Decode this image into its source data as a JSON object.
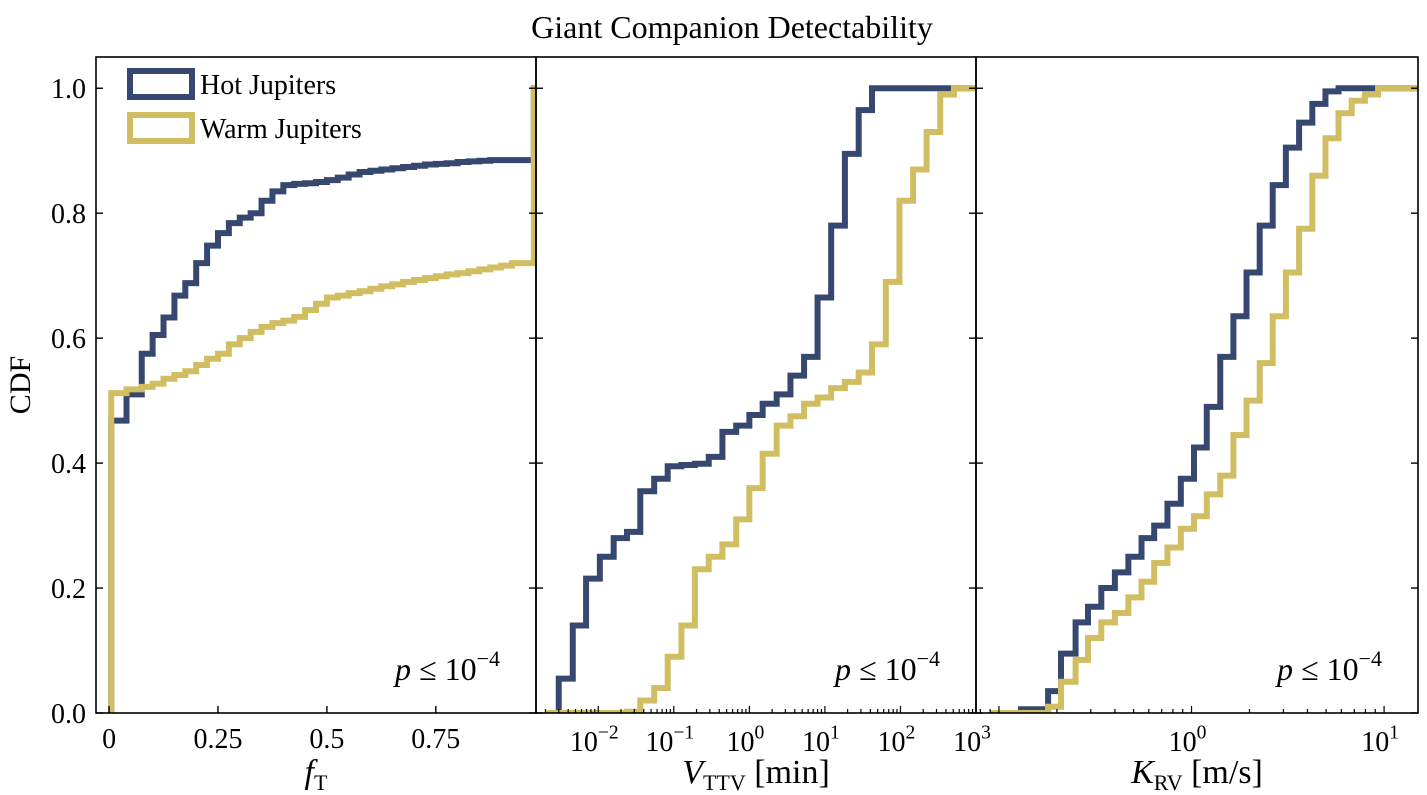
{
  "title": "Giant Companion Detectability",
  "colors": {
    "hot": "#364770",
    "warm": "#d2be62",
    "axis": "#000000"
  },
  "legend": [
    {
      "label": "Hot Jupiters",
      "color": "#364770"
    },
    {
      "label": "Warm Jupiters",
      "color": "#d2be62"
    }
  ],
  "ylabel": "CDF",
  "ytick_labels": [
    "0.0",
    "0.2",
    "0.4",
    "0.6",
    "0.8",
    "1.0"
  ],
  "chart_data": [
    {
      "type": "line",
      "step": true,
      "xlabel_main": "f",
      "xlabel_sub": "T",
      "xscale": "linear",
      "xlim": [
        -0.03,
        0.98
      ],
      "ylim": [
        0,
        1.05
      ],
      "xticks": [
        0,
        0.25,
        0.5,
        0.75
      ],
      "xtick_labels": [
        "0",
        "0.25",
        "0.5",
        "0.75"
      ],
      "annotation": {
        "p": "p",
        "rel": "≤",
        "base": "10",
        "exp": "−4"
      },
      "series": [
        {
          "name": "Hot Jupiters",
          "x": [
            0,
            0.005,
            0.04,
            0.075,
            0.1,
            0.125,
            0.15,
            0.175,
            0.2,
            0.225,
            0.25,
            0.275,
            0.3,
            0.325,
            0.35,
            0.375,
            0.4,
            0.425,
            0.45,
            0.475,
            0.5,
            0.525,
            0.55,
            0.575,
            0.6,
            0.625,
            0.65,
            0.675,
            0.7,
            0.725,
            0.75,
            0.775,
            0.8,
            0.825,
            0.85,
            0.875,
            0.9,
            0.925,
            0.975
          ],
          "y": [
            0,
            0.468,
            0.51,
            0.575,
            0.605,
            0.633,
            0.668,
            0.688,
            0.72,
            0.748,
            0.768,
            0.784,
            0.793,
            0.8,
            0.82,
            0.835,
            0.845,
            0.847,
            0.848,
            0.85,
            0.853,
            0.857,
            0.862,
            0.866,
            0.868,
            0.87,
            0.872,
            0.874,
            0.876,
            0.878,
            0.879,
            0.88,
            0.882,
            0.883,
            0.884,
            0.885,
            0.885,
            0.885,
            1.0
          ]
        },
        {
          "name": "Warm Jupiters",
          "x": [
            0,
            0.005,
            0.04,
            0.075,
            0.1,
            0.125,
            0.15,
            0.175,
            0.2,
            0.225,
            0.25,
            0.275,
            0.3,
            0.325,
            0.35,
            0.375,
            0.4,
            0.425,
            0.45,
            0.475,
            0.5,
            0.525,
            0.55,
            0.575,
            0.6,
            0.625,
            0.65,
            0.675,
            0.7,
            0.725,
            0.75,
            0.775,
            0.8,
            0.825,
            0.85,
            0.875,
            0.9,
            0.925,
            0.975
          ],
          "y": [
            0,
            0.512,
            0.518,
            0.522,
            0.527,
            0.535,
            0.541,
            0.547,
            0.557,
            0.567,
            0.575,
            0.59,
            0.6,
            0.61,
            0.618,
            0.624,
            0.628,
            0.634,
            0.645,
            0.655,
            0.665,
            0.668,
            0.672,
            0.675,
            0.679,
            0.683,
            0.686,
            0.69,
            0.693,
            0.696,
            0.699,
            0.702,
            0.704,
            0.707,
            0.71,
            0.713,
            0.716,
            0.72,
            1.0
          ]
        }
      ]
    },
    {
      "type": "line",
      "step": true,
      "xlabel_main": "V",
      "xlabel_sub": "TTV",
      "xlabel_unit": "[min]",
      "xscale": "log",
      "xlim": [
        0.0015,
        1000
      ],
      "ylim": [
        0,
        1.05
      ],
      "xticks": [
        0.01,
        0.1,
        1,
        10,
        100,
        1000
      ],
      "xtick_labels": [
        {
          "base": "10",
          "exp": "−2"
        },
        {
          "base": "10",
          "exp": "−1"
        },
        {
          "base": "10",
          "exp": "0"
        },
        {
          "base": "10",
          "exp": "1"
        },
        {
          "base": "10",
          "exp": "2"
        },
        {
          "base": "10",
          "exp": "3"
        }
      ],
      "annotation": {
        "p": "p",
        "rel": "≤",
        "base": "10",
        "exp": "−4"
      },
      "series": [
        {
          "name": "Hot Jupiters",
          "x": [
            0.002,
            0.003,
            0.0046,
            0.0069,
            0.0105,
            0.016,
            0.024,
            0.036,
            0.055,
            0.083,
            0.126,
            0.19,
            0.29,
            0.44,
            0.67,
            1.0,
            1.5,
            2.3,
            3.5,
            5.3,
            8.0,
            12.1,
            18.4,
            28,
            42,
            64,
            97,
            147,
            222,
            336,
            510,
            770
          ],
          "y": [
            0.0,
            0.055,
            0.14,
            0.215,
            0.25,
            0.28,
            0.29,
            0.355,
            0.375,
            0.395,
            0.397,
            0.399,
            0.41,
            0.45,
            0.46,
            0.477,
            0.495,
            0.51,
            0.54,
            0.57,
            0.665,
            0.78,
            0.895,
            0.965,
            1.0,
            1.0,
            1.0,
            1.0,
            1.0,
            1.0,
            1.0,
            1.0
          ]
        },
        {
          "name": "Warm Jupiters",
          "x": [
            0.002,
            0.003,
            0.0046,
            0.0069,
            0.0105,
            0.016,
            0.024,
            0.036,
            0.055,
            0.083,
            0.126,
            0.19,
            0.29,
            0.44,
            0.67,
            1.0,
            1.5,
            2.3,
            3.5,
            5.3,
            8.0,
            12.1,
            18.4,
            28,
            42,
            64,
            97,
            147,
            222,
            336,
            510,
            770
          ],
          "y": [
            0.0,
            0.0,
            0.0,
            0.0,
            0.0,
            0.0,
            0.002,
            0.02,
            0.04,
            0.09,
            0.14,
            0.23,
            0.25,
            0.27,
            0.31,
            0.36,
            0.415,
            0.46,
            0.475,
            0.495,
            0.505,
            0.52,
            0.53,
            0.545,
            0.59,
            0.69,
            0.82,
            0.87,
            0.93,
            0.99,
            1.0,
            1.0
          ]
        }
      ]
    },
    {
      "type": "line",
      "step": true,
      "xlabel_main": "K",
      "xlabel_sub": "RV",
      "xlabel_unit": "[m/s]",
      "xscale": "log",
      "xlim": [
        0.076,
        15
      ],
      "ylim": [
        0,
        1.05
      ],
      "xticks": [
        1,
        10
      ],
      "xtick_labels": [
        {
          "base": "10",
          "exp": "0"
        },
        {
          "base": "10",
          "exp": "1"
        }
      ],
      "annotation": {
        "p": "p",
        "rel": "≤",
        "base": "10",
        "exp": "−4"
      },
      "series": [
        {
          "name": "Hot Jupiters",
          "x": [
            0.09,
            0.13,
            0.18,
            0.21,
            0.25,
            0.29,
            0.34,
            0.4,
            0.47,
            0.55,
            0.64,
            0.75,
            0.88,
            1.03,
            1.2,
            1.41,
            1.65,
            1.93,
            2.26,
            2.64,
            3.09,
            3.62,
            4.24,
            4.96,
            5.8,
            6.79,
            7.95,
            9.3,
            10.9,
            12.7
          ],
          "y": [
            0.0,
            0.006,
            0.035,
            0.095,
            0.145,
            0.17,
            0.2,
            0.225,
            0.25,
            0.28,
            0.3,
            0.335,
            0.375,
            0.425,
            0.49,
            0.57,
            0.635,
            0.705,
            0.78,
            0.845,
            0.905,
            0.945,
            0.975,
            0.995,
            1.0,
            1.0,
            1.0,
            1.0,
            1.0,
            1.0
          ]
        },
        {
          "name": "Warm Jupiters",
          "x": [
            0.09,
            0.13,
            0.18,
            0.21,
            0.25,
            0.29,
            0.34,
            0.4,
            0.47,
            0.55,
            0.64,
            0.75,
            0.88,
            1.03,
            1.2,
            1.41,
            1.65,
            1.93,
            2.26,
            2.64,
            3.09,
            3.62,
            4.24,
            4.96,
            5.8,
            6.79,
            7.95,
            9.3,
            10.9,
            12.7
          ],
          "y": [
            0.0,
            0.0,
            0.01,
            0.05,
            0.085,
            0.12,
            0.145,
            0.16,
            0.185,
            0.21,
            0.24,
            0.265,
            0.295,
            0.315,
            0.35,
            0.38,
            0.445,
            0.5,
            0.56,
            0.635,
            0.705,
            0.775,
            0.86,
            0.92,
            0.96,
            0.98,
            0.99,
            1.0,
            1.0,
            1.0
          ]
        }
      ]
    }
  ]
}
